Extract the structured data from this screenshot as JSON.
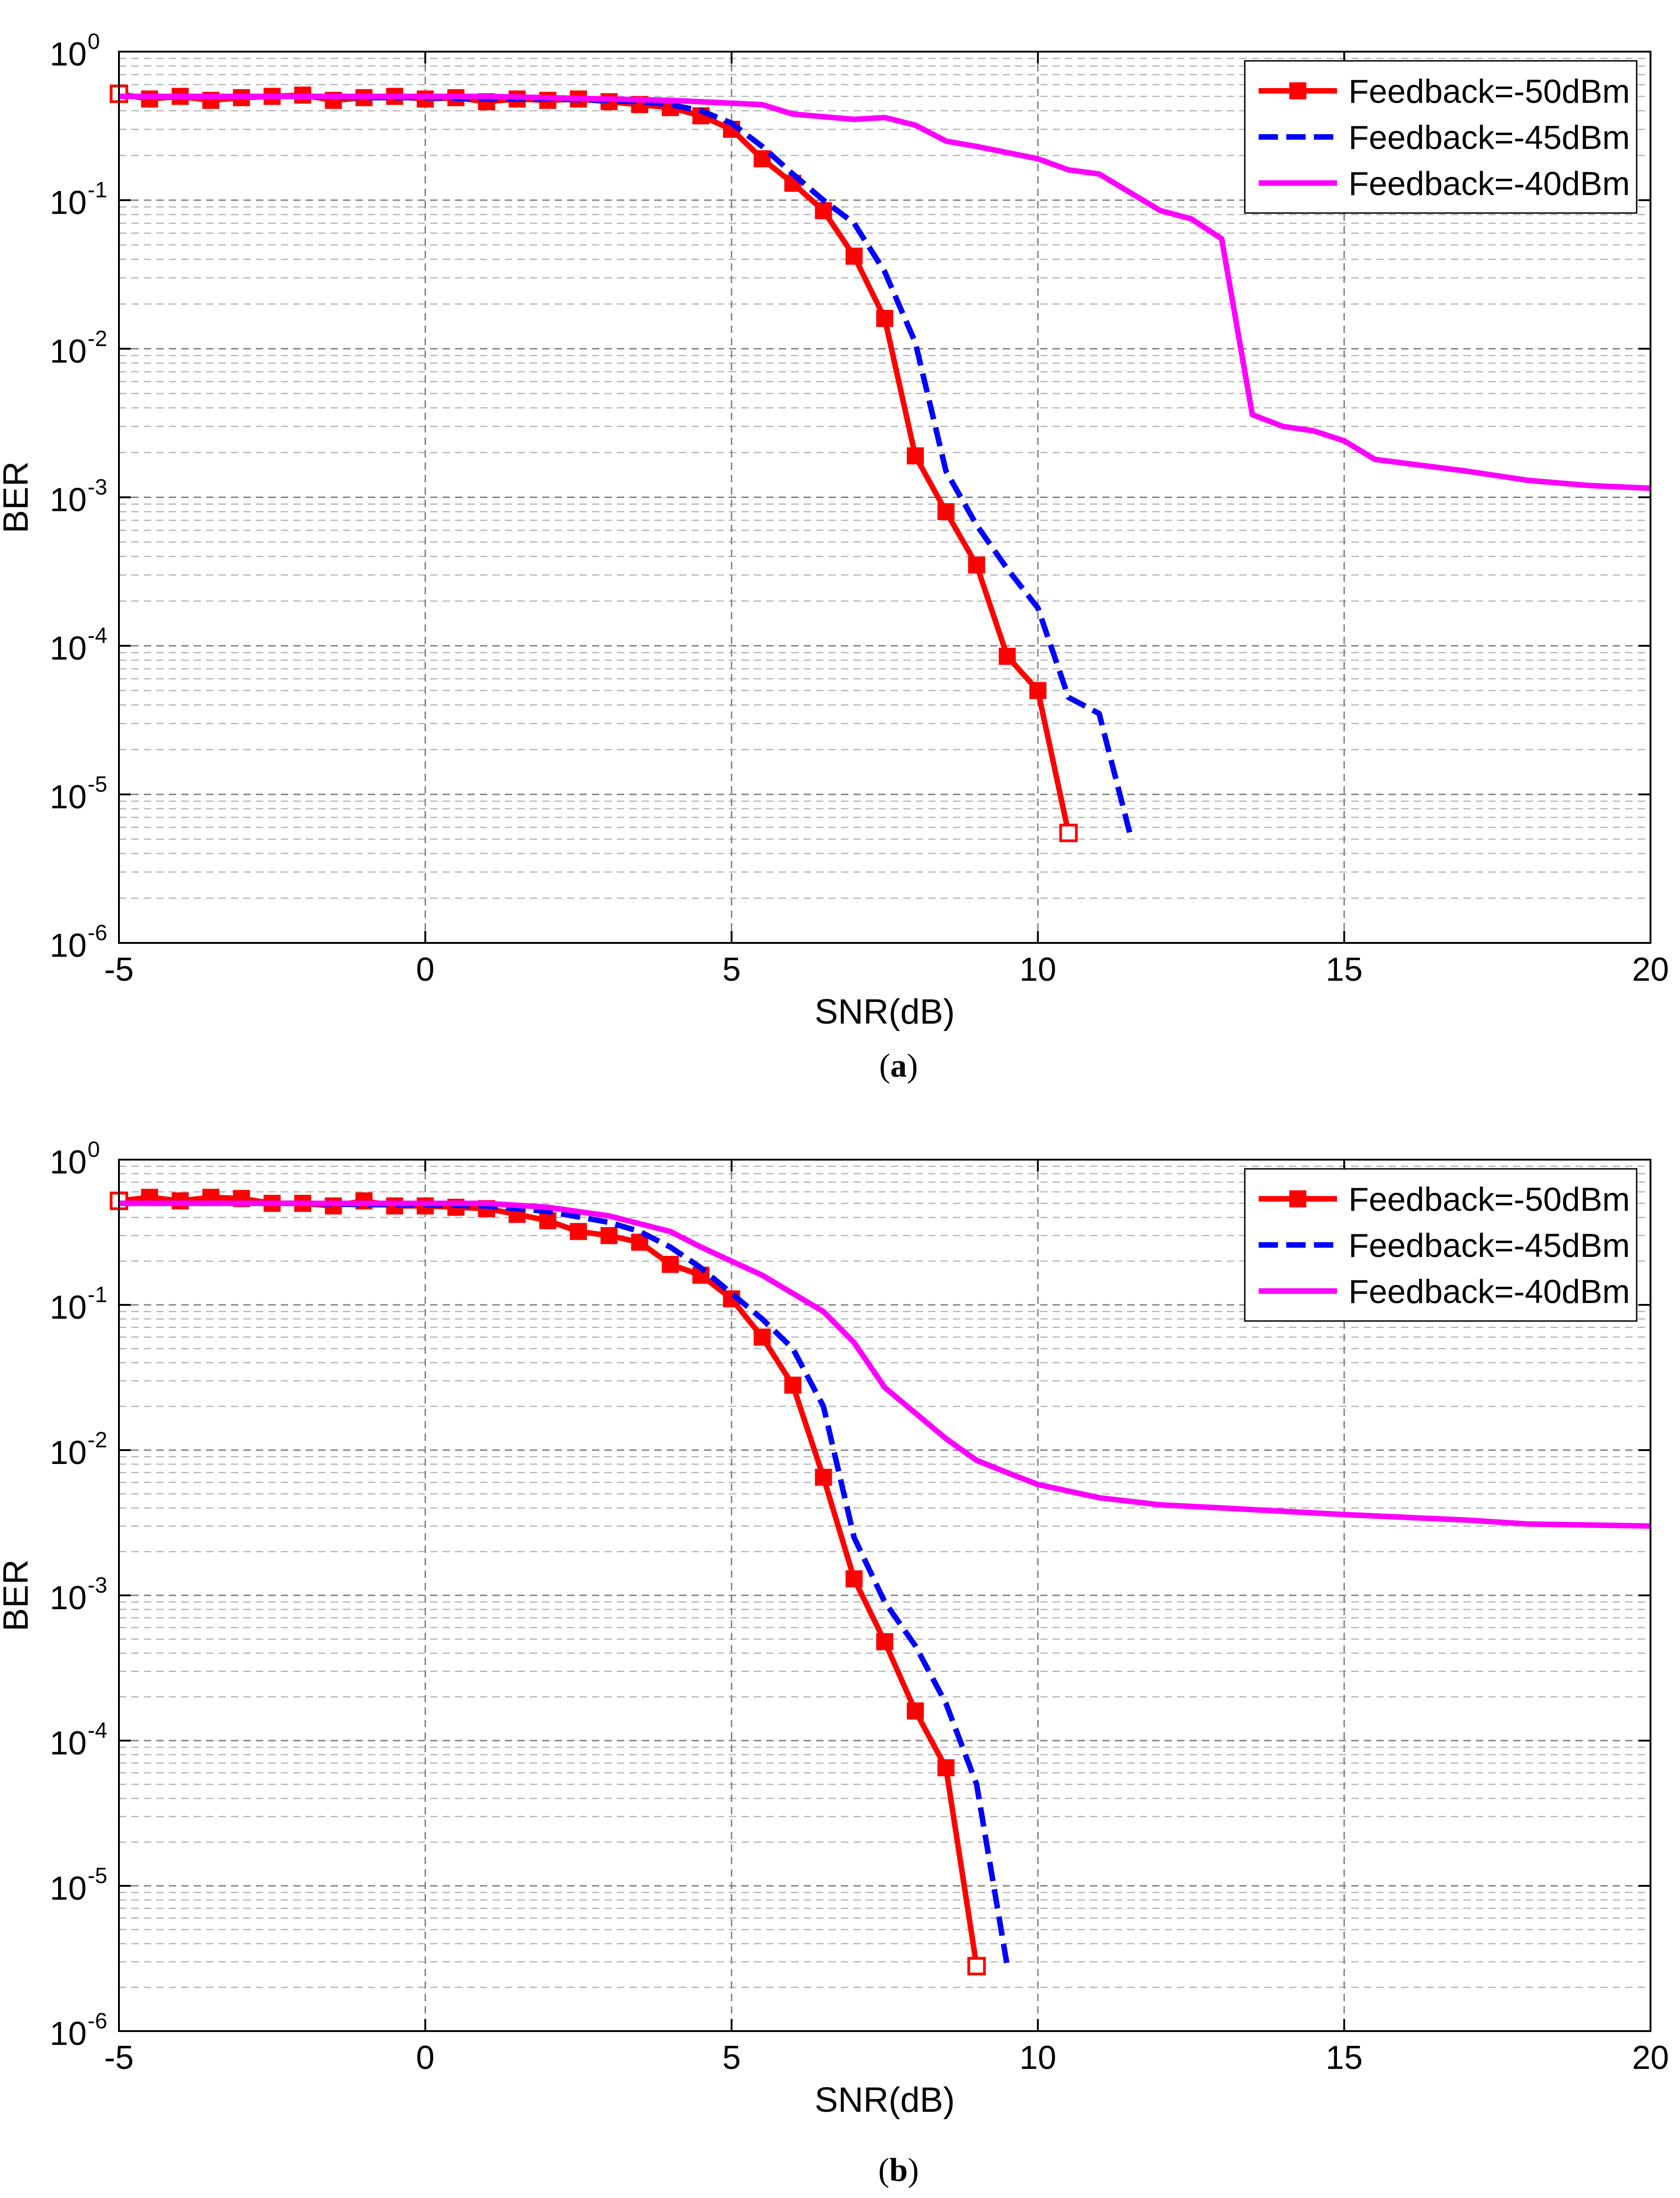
{
  "chart_data": [
    {
      "type": "line",
      "panel_label": "a",
      "xlabel": "SNR(dB)",
      "ylabel": "BER",
      "xscale": "linear",
      "yscale": "log",
      "xlim": [
        -5,
        20
      ],
      "ylim": [
        1e-06,
        1
      ],
      "xticks": [
        -5,
        0,
        5,
        10,
        15,
        20
      ],
      "xtick_labels": [
        "-5",
        "0",
        "5",
        "10",
        "15",
        "20"
      ],
      "ytick_mantissa": "10",
      "ytick_exponents": [
        "0",
        "-1",
        "-2",
        "-3",
        "-4",
        "-5",
        "-6"
      ],
      "grid": true,
      "legend_position": "top-right",
      "series": [
        {
          "name": "Feedback=-50dBm",
          "color": "#ff0000",
          "style": "solid",
          "marker": "square",
          "x": [
            -5,
            -4.5,
            -4,
            -3.5,
            -3,
            -2.5,
            -2,
            -1.5,
            -1,
            -0.5,
            0,
            0.5,
            1,
            1.5,
            2,
            2.5,
            3,
            3.5,
            4,
            4.5,
            5,
            5.5,
            6,
            6.5,
            7,
            7.5,
            8,
            8.5,
            9,
            9.5,
            10,
            10.5
          ],
          "y": [
            0.52,
            0.48,
            0.5,
            0.47,
            0.49,
            0.5,
            0.51,
            0.47,
            0.49,
            0.5,
            0.48,
            0.49,
            0.46,
            0.48,
            0.47,
            0.48,
            0.46,
            0.44,
            0.42,
            0.37,
            0.3,
            0.19,
            0.13,
            0.085,
            0.042,
            0.016,
            0.0019,
            0.0008,
            0.00035,
            8.5e-05,
            5e-05,
            5.5e-06
          ]
        },
        {
          "name": "Feedback=-45dBm",
          "color": "#0000ff",
          "style": "dashed",
          "marker": "none",
          "x": [
            -5,
            -4,
            -3,
            -2,
            -1,
            0,
            1,
            2,
            3,
            3.5,
            4,
            4.5,
            5,
            5.5,
            6,
            6.5,
            7,
            7.5,
            8,
            8.5,
            9,
            9.5,
            10,
            10.5,
            11,
            11.5
          ],
          "y": [
            0.5,
            0.5,
            0.5,
            0.5,
            0.49,
            0.49,
            0.48,
            0.48,
            0.47,
            0.46,
            0.44,
            0.4,
            0.33,
            0.23,
            0.15,
            0.1,
            0.07,
            0.033,
            0.011,
            0.0015,
            0.00065,
            0.00033,
            0.00018,
            4.5e-05,
            3.5e-05,
            5.5e-06
          ]
        },
        {
          "name": "Feedback=-40dBm",
          "color": "#ff00ff",
          "style": "solid",
          "marker": "none",
          "x": [
            -5,
            -3,
            -1,
            1,
            3,
            4,
            5,
            5.5,
            6,
            7,
            7.5,
            8,
            8.5,
            9,
            10,
            10.5,
            11,
            12,
            12.5,
            13,
            13.5,
            14,
            14.5,
            15,
            15.5,
            17,
            18,
            19,
            20
          ],
          "y": [
            0.5,
            0.5,
            0.5,
            0.5,
            0.48,
            0.47,
            0.45,
            0.44,
            0.38,
            0.35,
            0.36,
            0.32,
            0.25,
            0.23,
            0.19,
            0.16,
            0.15,
            0.085,
            0.075,
            0.055,
            0.0036,
            0.003,
            0.0028,
            0.0024,
            0.0018,
            0.0015,
            0.0013,
            0.0012,
            0.00115
          ]
        }
      ]
    },
    {
      "type": "line",
      "panel_label": "b",
      "xlabel": "SNR(dB)",
      "ylabel": "BER",
      "xscale": "linear",
      "yscale": "log",
      "xlim": [
        -5,
        20
      ],
      "ylim": [
        1e-06,
        1
      ],
      "xticks": [
        -5,
        0,
        5,
        10,
        15,
        20
      ],
      "xtick_labels": [
        "-5",
        "0",
        "5",
        "10",
        "15",
        "20"
      ],
      "ytick_mantissa": "10",
      "ytick_exponents": [
        "0",
        "-1",
        "-2",
        "-3",
        "-4",
        "-5",
        "-6"
      ],
      "grid": true,
      "legend_position": "top-right",
      "series": [
        {
          "name": "Feedback=-50dBm",
          "color": "#ff0000",
          "style": "solid",
          "marker": "square",
          "x": [
            -5,
            -4.5,
            -4,
            -3.5,
            -3,
            -2.5,
            -2,
            -1.5,
            -1,
            -0.5,
            0,
            0.5,
            1,
            1.5,
            2,
            2.5,
            3,
            3.5,
            4,
            4.5,
            5,
            5.5,
            6,
            6.5,
            7,
            7.5,
            8,
            8.5,
            9
          ],
          "y": [
            0.52,
            0.55,
            0.52,
            0.55,
            0.54,
            0.5,
            0.5,
            0.48,
            0.52,
            0.48,
            0.48,
            0.47,
            0.46,
            0.42,
            0.38,
            0.32,
            0.3,
            0.27,
            0.19,
            0.16,
            0.11,
            0.06,
            0.028,
            0.0065,
            0.0013,
            0.00048,
            0.00016,
            6.5e-05,
            2.8e-06
          ]
        },
        {
          "name": "Feedback=-45dBm",
          "color": "#0000ff",
          "style": "dashed",
          "marker": "none",
          "x": [
            -5,
            -4,
            -3,
            -2,
            -1,
            0,
            1,
            2,
            3,
            3.5,
            4,
            4.5,
            5,
            5.5,
            6,
            6.5,
            7,
            7.5,
            8,
            8.5,
            9,
            9.5
          ],
          "y": [
            0.5,
            0.5,
            0.5,
            0.5,
            0.49,
            0.49,
            0.48,
            0.44,
            0.37,
            0.32,
            0.25,
            0.18,
            0.12,
            0.08,
            0.05,
            0.02,
            0.0025,
            0.0009,
            0.00045,
            0.00018,
            5e-05,
            2.8e-06
          ]
        },
        {
          "name": "Feedback=-40dBm",
          "color": "#ff00ff",
          "style": "solid",
          "marker": "none",
          "x": [
            -5,
            -2,
            0,
            1,
            2,
            3,
            4,
            4.5,
            5,
            5.5,
            6,
            6.5,
            7,
            7.5,
            8,
            8.5,
            9,
            9.5,
            10,
            11,
            12,
            13,
            15,
            17,
            18,
            20
          ],
          "y": [
            0.5,
            0.5,
            0.5,
            0.5,
            0.47,
            0.41,
            0.32,
            0.25,
            0.2,
            0.16,
            0.12,
            0.09,
            0.055,
            0.027,
            0.018,
            0.012,
            0.0085,
            0.007,
            0.0058,
            0.0047,
            0.0042,
            0.004,
            0.0036,
            0.0033,
            0.0031,
            0.003
          ]
        }
      ]
    }
  ]
}
